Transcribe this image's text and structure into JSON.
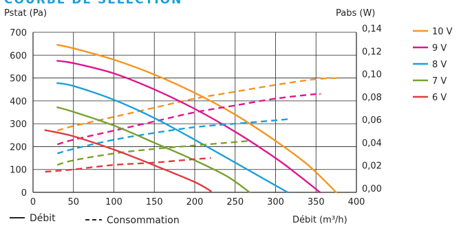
{
  "chart_data": {
    "type": "line",
    "title": "COURBE DE SÉLECTION",
    "y_left_label": "Pstat (Pa)",
    "y_right_label": "Pabs (W)",
    "x_label": "Débit (m³/h)",
    "x_ticks": [
      "0",
      "50",
      "100",
      "150",
      "200",
      "250",
      "300",
      "350",
      "400"
    ],
    "y_left_ticks": [
      "0",
      "100",
      "200",
      "300",
      "400",
      "500",
      "600",
      "700"
    ],
    "y_right_ticks": [
      "0,00",
      "0,02",
      "0,04",
      "0,06",
      "0,08",
      "0,10",
      "0,12",
      "0,14"
    ],
    "xlim": [
      0,
      400
    ],
    "ylim_left": [
      0,
      700
    ],
    "ylim_right": [
      0,
      0.14
    ],
    "grid": true,
    "legend_position": "right",
    "style_legend": [
      "Débit",
      "Consommation"
    ],
    "series": [
      {
        "name": "10 V",
        "color": "#f7941d",
        "debit": [
          [
            30,
            645
          ],
          [
            50,
            630
          ],
          [
            100,
            580
          ],
          [
            150,
            515
          ],
          [
            200,
            435
          ],
          [
            250,
            340
          ],
          [
            300,
            225
          ],
          [
            340,
            120
          ],
          [
            375,
            0
          ]
        ],
        "consommation": [
          [
            30,
            0.054
          ],
          [
            50,
            0.058
          ],
          [
            100,
            0.066
          ],
          [
            150,
            0.074
          ],
          [
            200,
            0.082
          ],
          [
            250,
            0.088
          ],
          [
            300,
            0.094
          ],
          [
            350,
            0.099
          ],
          [
            380,
            0.1
          ]
        ]
      },
      {
        "name": "9 V",
        "color": "#e0148f",
        "debit": [
          [
            30,
            575
          ],
          [
            50,
            565
          ],
          [
            100,
            520
          ],
          [
            150,
            450
          ],
          [
            200,
            365
          ],
          [
            250,
            265
          ],
          [
            300,
            150
          ],
          [
            330,
            70
          ],
          [
            355,
            0
          ]
        ],
        "consommation": [
          [
            30,
            0.042
          ],
          [
            50,
            0.046
          ],
          [
            100,
            0.054
          ],
          [
            150,
            0.062
          ],
          [
            200,
            0.07
          ],
          [
            250,
            0.076
          ],
          [
            300,
            0.082
          ],
          [
            350,
            0.086
          ],
          [
            355,
            0.086
          ]
        ]
      },
      {
        "name": "8 V",
        "color": "#1aa0db",
        "debit": [
          [
            30,
            478
          ],
          [
            50,
            465
          ],
          [
            100,
            405
          ],
          [
            150,
            325
          ],
          [
            200,
            230
          ],
          [
            250,
            130
          ],
          [
            290,
            50
          ],
          [
            315,
            0
          ]
        ],
        "consommation": [
          [
            30,
            0.034
          ],
          [
            50,
            0.038
          ],
          [
            100,
            0.046
          ],
          [
            150,
            0.052
          ],
          [
            200,
            0.057
          ],
          [
            250,
            0.06
          ],
          [
            300,
            0.063
          ],
          [
            315,
            0.064
          ]
        ]
      },
      {
        "name": "7 V",
        "color": "#77a22f",
        "debit": [
          [
            30,
            372
          ],
          [
            50,
            352
          ],
          [
            100,
            292
          ],
          [
            150,
            217
          ],
          [
            200,
            140
          ],
          [
            240,
            70
          ],
          [
            268,
            0
          ]
        ],
        "consommation": [
          [
            30,
            0.024
          ],
          [
            50,
            0.028
          ],
          [
            100,
            0.034
          ],
          [
            150,
            0.038
          ],
          [
            200,
            0.041
          ],
          [
            250,
            0.044
          ],
          [
            268,
            0.045
          ]
        ]
      },
      {
        "name": "6 V",
        "color": "#e03a3e",
        "debit": [
          [
            15,
            272
          ],
          [
            50,
            245
          ],
          [
            100,
            187
          ],
          [
            150,
            118
          ],
          [
            200,
            45
          ],
          [
            220,
            5
          ]
        ],
        "consommation": [
          [
            15,
            0.018
          ],
          [
            50,
            0.02
          ],
          [
            100,
            0.024
          ],
          [
            150,
            0.026
          ],
          [
            200,
            0.029
          ],
          [
            220,
            0.03
          ]
        ]
      }
    ]
  }
}
